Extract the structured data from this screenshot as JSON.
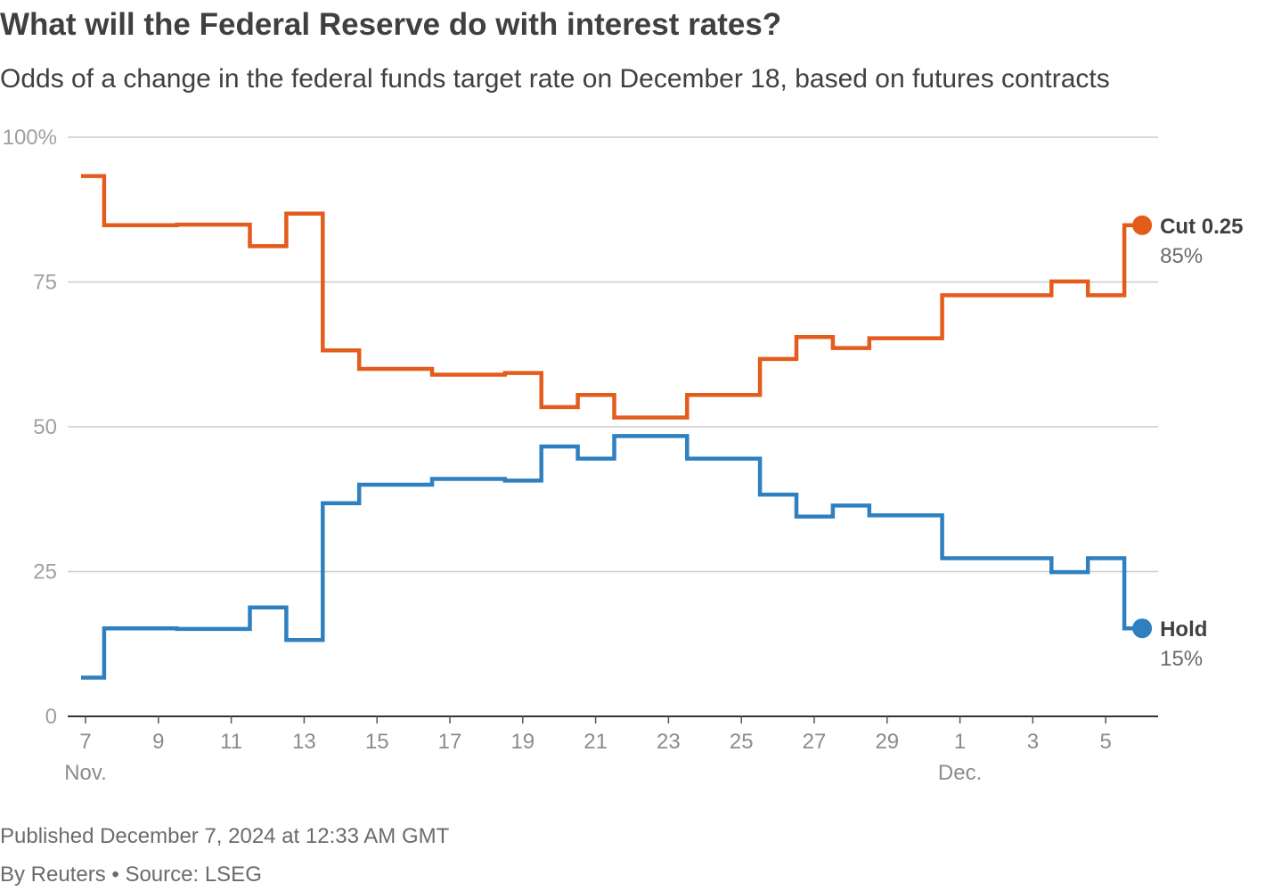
{
  "header": {
    "title": "What will the Federal Reserve do with interest rates?",
    "subtitle": "Odds of a change in the federal funds target rate on December 18, based on futures contracts"
  },
  "footer": {
    "published": "Published December 7, 2024 at 12:33 AM GMT",
    "source": "By Reuters • Source: LSEG"
  },
  "chart_data": {
    "type": "line",
    "step": true,
    "title": "What will the Federal Reserve do with interest rates?",
    "subtitle": "Odds of a change in the federal funds target rate on December 18, based on futures contracts",
    "ylim": [
      0,
      100
    ],
    "yticks": [
      0,
      25,
      50,
      75,
      100
    ],
    "ytick_labels": [
      "0",
      "25",
      "50",
      "75",
      "100%"
    ],
    "xticks": [
      {
        "date": "2024-11-07",
        "label": "7",
        "sublabel": "Nov."
      },
      {
        "date": "2024-11-09",
        "label": "9"
      },
      {
        "date": "2024-11-11",
        "label": "11"
      },
      {
        "date": "2024-11-13",
        "label": "13"
      },
      {
        "date": "2024-11-15",
        "label": "15"
      },
      {
        "date": "2024-11-17",
        "label": "17"
      },
      {
        "date": "2024-11-19",
        "label": "19"
      },
      {
        "date": "2024-11-21",
        "label": "21"
      },
      {
        "date": "2024-11-23",
        "label": "23"
      },
      {
        "date": "2024-11-25",
        "label": "25"
      },
      {
        "date": "2024-11-27",
        "label": "27"
      },
      {
        "date": "2024-11-29",
        "label": "29"
      },
      {
        "date": "2024-12-01",
        "label": "1",
        "sublabel": "Dec."
      },
      {
        "date": "2024-12-03",
        "label": "3"
      },
      {
        "date": "2024-12-05",
        "label": "5"
      }
    ],
    "x": [
      "2024-11-07",
      "2024-11-08",
      "2024-11-09",
      "2024-11-10",
      "2024-11-11",
      "2024-11-12",
      "2024-11-13",
      "2024-11-14",
      "2024-11-15",
      "2024-11-16",
      "2024-11-17",
      "2024-11-18",
      "2024-11-19",
      "2024-11-20",
      "2024-11-21",
      "2024-11-22",
      "2024-11-23",
      "2024-11-24",
      "2024-11-25",
      "2024-11-26",
      "2024-11-27",
      "2024-11-28",
      "2024-11-29",
      "2024-11-30",
      "2024-12-01",
      "2024-12-02",
      "2024-12-03",
      "2024-12-04",
      "2024-12-05",
      "2024-12-06"
    ],
    "grid": true,
    "series": [
      {
        "name": "Cut 0.25",
        "end_label": "85%",
        "color": "#e35c1c",
        "values": [
          93.3,
          84.8,
          84.8,
          84.9,
          84.9,
          81.2,
          86.8,
          63.2,
          60.0,
          60.0,
          59.0,
          59.0,
          59.3,
          53.4,
          55.5,
          51.6,
          51.6,
          55.5,
          55.5,
          61.7,
          65.5,
          63.6,
          65.3,
          65.3,
          72.7,
          72.7,
          72.7,
          75.1,
          72.7,
          84.8
        ]
      },
      {
        "name": "Hold",
        "end_label": "15%",
        "color": "#2f80c0",
        "values": [
          6.7,
          15.2,
          15.2,
          15.1,
          15.1,
          18.8,
          13.2,
          36.8,
          40.0,
          40.0,
          41.0,
          41.0,
          40.7,
          46.6,
          44.5,
          48.4,
          48.4,
          44.5,
          44.5,
          38.3,
          34.5,
          36.4,
          34.7,
          34.7,
          27.3,
          27.3,
          27.3,
          24.9,
          27.3,
          15.2
        ]
      }
    ]
  }
}
